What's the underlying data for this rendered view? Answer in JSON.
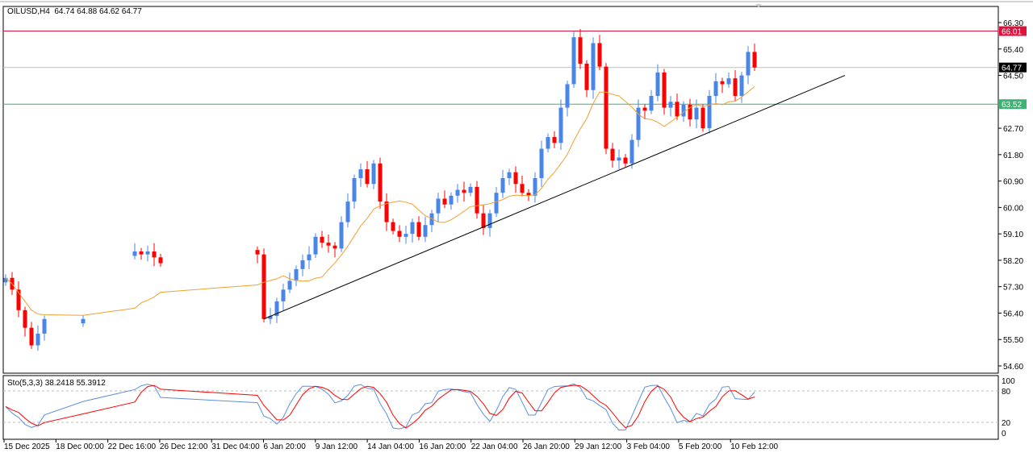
{
  "header": {
    "symbol": "OILUSD,H4",
    "ohlc": "64.74 64.88 64.62 64.77"
  },
  "colors": {
    "bull": "#4a86e8",
    "bear": "#ff0000",
    "ma": "#f0a030",
    "resistance": "#dc143c",
    "support": "#3cb371",
    "bid": "#c0c0c0",
    "trendline": "#000000",
    "sto_main": "#5b8fe0",
    "sto_signal": "#ff0000"
  },
  "chart_data": {
    "type": "candlestick",
    "price_axis": {
      "min": 54.6,
      "max": 66.3,
      "ticks": [
        "66.30",
        "65.40",
        "64.50",
        "62.70",
        "61.80",
        "60.90",
        "60.00",
        "59.10",
        "58.20",
        "57.30",
        "56.40",
        "55.50",
        "54.60"
      ]
    },
    "time_axis": {
      "ticks": [
        "15 Dec 2025",
        "18 Dec 00:00",
        "22 Dec 16:00",
        "26 Dec 12:00",
        "31 Dec 04:00",
        "6 Jan 20:00",
        "9 Jan 12:00",
        "14 Jan 04:00",
        "16 Jan 20:00",
        "22 Jan 04:00",
        "26 Jan 20:00",
        "29 Jan 12:00",
        "3 Feb 04:00",
        "5 Feb 20:00",
        "10 Feb 12:00"
      ]
    },
    "closes": [
      57.6,
      57.2,
      56.5,
      55.9,
      55.3,
      55.7,
      56.2,
      null,
      null,
      null,
      null,
      null,
      56.2,
      null,
      null,
      null,
      null,
      null,
      null,
      null,
      58.5,
      58.4,
      58.5,
      58.3,
      58.1,
      null,
      null,
      null,
      null,
      null,
      null,
      null,
      null,
      null,
      null,
      null,
      null,
      null,
      null,
      58.4,
      56.2,
      56.3,
      56.8,
      57.2,
      57.5,
      57.9,
      58.2,
      58.4,
      59.0,
      58.8,
      58.7,
      58.6,
      59.5,
      60.2,
      61.0,
      61.3,
      60.8,
      61.5,
      60.2,
      59.5,
      59.2,
      59.0,
      59.1,
      59.5,
      59.0,
      59.4,
      59.8,
      60.3,
      60.1,
      60.4,
      60.6,
      60.5,
      60.7,
      59.8,
      59.3,
      59.8,
      60.5,
      61.0,
      61.2,
      60.8,
      60.5,
      60.4,
      61.0,
      62.0,
      62.4,
      62.2,
      63.4,
      64.2,
      65.8,
      64.9,
      64.0,
      65.6,
      64.8,
      62.0,
      61.6,
      61.7,
      61.5,
      62.3,
      63.4,
      63.3,
      63.8,
      64.6,
      63.4,
      63.6,
      63.1,
      63.5,
      63.0,
      63.4,
      62.7,
      63.8,
      64.3,
      64.2,
      64.4,
      63.8,
      64.5,
      65.3,
      64.77
    ],
    "horizontal_lines": [
      {
        "price": 66.01,
        "label": "66.01",
        "role": "resistance"
      },
      {
        "price": 64.77,
        "label": "64.77",
        "role": "bid"
      },
      {
        "price": 63.52,
        "label": "63.52",
        "role": "support"
      }
    ],
    "trendline": {
      "start": {
        "index": 40,
        "price": 56.2
      },
      "end": {
        "index": 130,
        "price": 64.5
      }
    },
    "moving_average": {
      "period": 10
    },
    "stochastic": {
      "label": "Sto(5,3,3) 38.2418 55.3912",
      "levels": [
        80,
        20
      ],
      "axis_ticks": [
        "100",
        "80",
        "20",
        "0"
      ],
      "range": [
        0,
        100
      ]
    }
  }
}
